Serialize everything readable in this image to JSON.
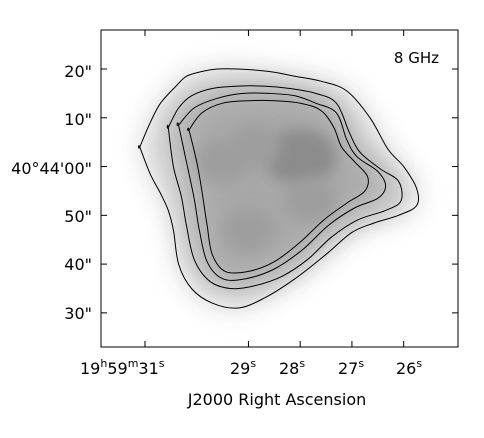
{
  "chart_data": {
    "type": "contour",
    "frequency_label": "8 GHz",
    "xlabel": "J2000 Right Ascension",
    "ylabel": "",
    "x_ticks": [
      {
        "h": "19",
        "m": "59",
        "s": "31",
        "value_s": 31
      },
      {
        "s": "29",
        "value_s": 29
      },
      {
        "s": "28",
        "value_s": 28
      },
      {
        "s": "27",
        "value_s": 27
      },
      {
        "s": "26",
        "value_s": 26
      }
    ],
    "y_ticks": [
      {
        "label": "20\"",
        "value_arcsec": 20
      },
      {
        "label": "10\"",
        "value_arcsec": 10
      },
      {
        "label": "40°44'00\"",
        "value_arcsec": 0
      },
      {
        "label": "50\"",
        "value_arcsec": -10
      },
      {
        "label": "40\"",
        "value_arcsec": -20
      },
      {
        "label": "30\"",
        "value_arcsec": -30
      }
    ],
    "ra_range_s": [
      24.95,
      31.85
    ],
    "dec_range_arcsec": [
      -37.0,
      28.0
    ],
    "contours": [
      {
        "level": 1,
        "ra_s": [
          31.1,
          30.9,
          30.7,
          30.4,
          30.2,
          29.9,
          29.6,
          29.2,
          28.6,
          28.1,
          27.6,
          27.1,
          26.65,
          26.3,
          26.0,
          25.75,
          25.75,
          26.1,
          26.55,
          27.0,
          27.5,
          28.1,
          28.7,
          29.2,
          29.7,
          30.1,
          30.35,
          30.45,
          30.55,
          30.7,
          30.9,
          31.1
        ],
        "dec_arcsec": [
          4.0,
          9.0,
          13.0,
          16.5,
          18.5,
          19.5,
          20.0,
          20.0,
          19.5,
          18.5,
          17.5,
          15.5,
          10.0,
          3.5,
          0.0,
          -4.5,
          -8.0,
          -10.0,
          -11.5,
          -13.5,
          -18.0,
          -23.0,
          -27.0,
          -29.0,
          -28.0,
          -25.0,
          -20.0,
          -13.0,
          -9.0,
          -5.5,
          -1.5,
          4.0
        ]
      },
      {
        "level": 2,
        "ra_s": [
          30.55,
          30.35,
          30.1,
          29.7,
          29.2,
          28.7,
          28.2,
          27.7,
          27.3,
          27.05,
          26.85,
          26.45,
          26.1,
          26.05,
          26.35,
          26.9,
          27.4,
          27.85,
          28.35,
          28.9,
          29.35,
          29.75,
          30.05,
          30.2,
          30.3,
          30.45,
          30.55
        ],
        "dec_arcsec": [
          8.0,
          12.0,
          14.5,
          16.0,
          16.5,
          16.5,
          16.0,
          15.0,
          13.0,
          7.0,
          3.0,
          -0.5,
          -3.0,
          -7.0,
          -9.0,
          -11.0,
          -14.5,
          -19.0,
          -22.5,
          -24.5,
          -25.0,
          -23.5,
          -19.0,
          -12.0,
          -6.0,
          0.0,
          8.0
        ]
      },
      {
        "level": 3,
        "ra_s": [
          30.35,
          30.05,
          29.6,
          29.1,
          28.6,
          28.1,
          27.7,
          27.3,
          27.1,
          26.9,
          26.5,
          26.35,
          26.5,
          26.95,
          27.45,
          27.95,
          28.5,
          29.05,
          29.5,
          29.8,
          29.95,
          30.05,
          30.2,
          30.35
        ],
        "dec_arcsec": [
          8.5,
          12.0,
          14.0,
          15.0,
          15.0,
          14.5,
          13.0,
          11.0,
          5.5,
          2.0,
          -1.0,
          -4.0,
          -6.5,
          -8.5,
          -12.0,
          -17.0,
          -21.0,
          -23.0,
          -23.0,
          -19.5,
          -13.0,
          -6.5,
          1.0,
          8.5
        ]
      },
      {
        "level": 4,
        "ra_s": [
          30.15,
          29.9,
          29.5,
          29.0,
          28.5,
          28.0,
          27.6,
          27.35,
          27.2,
          26.95,
          26.7,
          26.75,
          27.1,
          27.55,
          28.0,
          28.5,
          29.0,
          29.45,
          29.7,
          29.8,
          29.9,
          30.0,
          30.15
        ],
        "dec_arcsec": [
          7.5,
          11.0,
          13.0,
          13.5,
          13.5,
          13.0,
          11.5,
          8.0,
          4.0,
          1.0,
          -2.0,
          -5.0,
          -7.5,
          -11.0,
          -15.5,
          -19.5,
          -21.5,
          -21.5,
          -18.0,
          -12.0,
          -5.0,
          1.0,
          7.5
        ]
      }
    ],
    "emission_peaks": [
      {
        "ra_s": 28.0,
        "dec_arcsec": 2.0
      },
      {
        "ra_s": 29.0,
        "dec_arcsec": -13.0
      },
      {
        "ra_s": 28.9,
        "dec_arcsec": 4.0
      },
      {
        "ra_s": 29.5,
        "dec_arcsec": 1.0
      },
      {
        "ra_s": 27.8,
        "dec_arcsec": -7.0
      }
    ]
  }
}
